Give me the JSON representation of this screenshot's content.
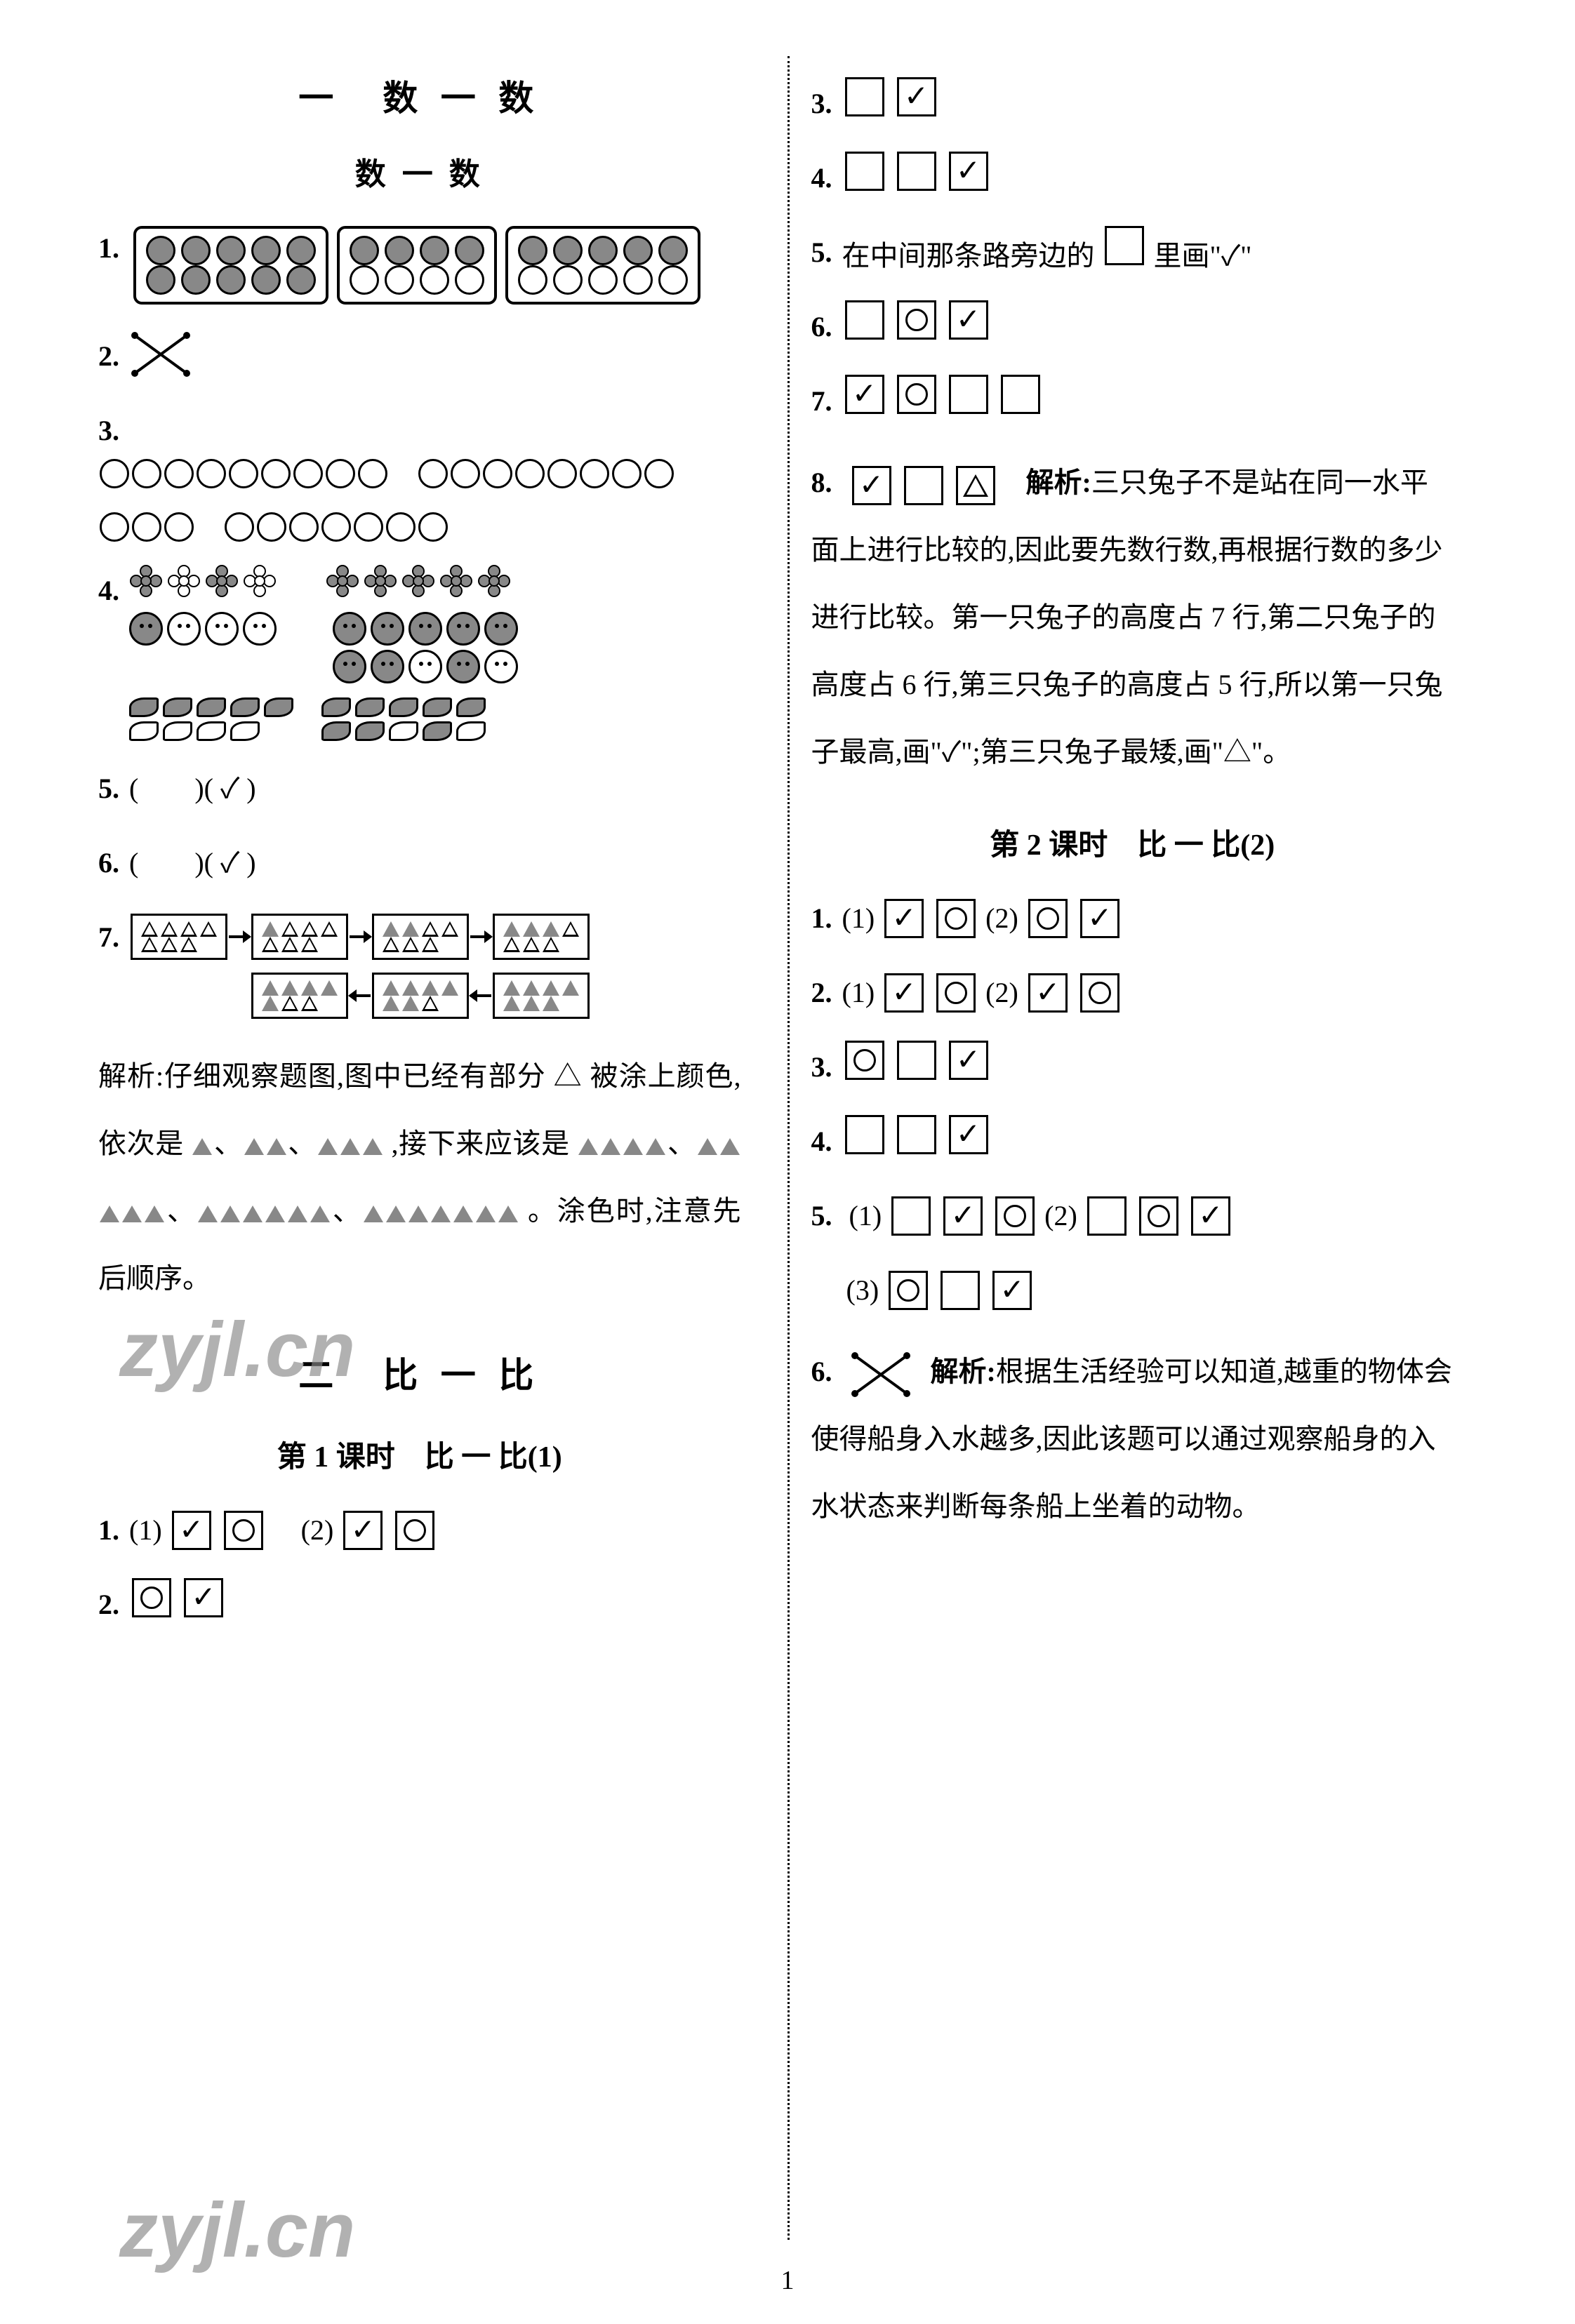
{
  "page_number": "1",
  "watermark": "zyjl.cn",
  "left": {
    "title1": "一　数 一 数",
    "subtitle1": "数 一 数",
    "q1": {
      "trays": [
        {
          "rows": [
            [
              1,
              1,
              1,
              1,
              1
            ],
            [
              1,
              1,
              1,
              1,
              1
            ]
          ]
        },
        {
          "rows": [
            [
              1,
              1,
              1,
              1
            ],
            [
              0,
              0,
              0,
              0
            ]
          ]
        },
        {
          "rows": [
            [
              1,
              1,
              1,
              1,
              1
            ],
            [
              0,
              0,
              0,
              0,
              0
            ]
          ]
        }
      ]
    },
    "q3": {
      "groups": [
        9,
        8,
        3,
        7
      ]
    },
    "q4": {
      "flowers_a": [
        1,
        0,
        1,
        0
      ],
      "flowers_b": [
        1,
        1,
        1,
        1,
        1
      ],
      "smileys_a": [
        1,
        0,
        0,
        0
      ],
      "smileys_b_top": [
        1,
        1,
        1,
        1,
        1
      ],
      "smileys_b_bot": [
        1,
        1,
        0,
        1,
        0
      ],
      "leaves_a_top": [
        1,
        1,
        1,
        1,
        1
      ],
      "leaves_a_bot": [
        0,
        0,
        0,
        0
      ],
      "leaves_b_top": [
        1,
        1,
        1,
        1,
        1
      ],
      "leaves_b_bot": [
        1,
        1,
        0,
        1,
        0
      ]
    },
    "q5": "(　　)( ✓ )",
    "q6": "(　　)( ✓ )",
    "q7": {
      "boxes_top": [
        [
          [
            0,
            0,
            0,
            0
          ],
          [
            0,
            0,
            0
          ]
        ],
        [
          [
            1,
            0,
            0,
            0
          ],
          [
            0,
            0,
            0
          ]
        ],
        [
          [
            1,
            1,
            0,
            0
          ],
          [
            0,
            0,
            0
          ]
        ],
        [
          [
            1,
            1,
            1,
            0
          ],
          [
            0,
            0,
            0
          ]
        ]
      ],
      "boxes_bot": [
        [
          [
            1,
            1,
            1,
            1
          ],
          [
            1,
            1,
            1
          ]
        ],
        [
          [
            1,
            1,
            1,
            1
          ],
          [
            1,
            1,
            0
          ]
        ],
        [
          [
            1,
            1,
            1,
            1
          ],
          [
            1,
            0,
            0
          ]
        ]
      ]
    },
    "analysis7_pre": "解析:仔细观察题图,图中已经有部分 △ 被涂上颜色,依次是",
    "analysis7_seq": "▲、▲▲、▲▲▲",
    "analysis7_mid": ",接下来应该是",
    "analysis7_seq2": "▲▲▲▲、▲▲▲▲▲、▲▲▲▲▲▲、▲▲▲▲▲▲▲",
    "analysis7_end": "。涂色时,注意先后顺序。",
    "title2": "二　比 一 比",
    "lesson1": "第 1 课时　比 一 比(1)",
    "l1q1_part1": "(1)",
    "l1q1_part2": "(2)",
    "l1q1_1": [
      "check",
      "circle"
    ],
    "l1q1_2": [
      "check",
      "circle"
    ],
    "l1q2": [
      "circle",
      "check"
    ]
  },
  "right": {
    "q3": [
      "",
      "check"
    ],
    "q4": [
      "",
      "",
      "check"
    ],
    "q5_text": "在中间那条路旁边的 　 里画\"✓\"",
    "q6": [
      "",
      "circle",
      "check"
    ],
    "q7": [
      "check",
      "circle",
      "",
      ""
    ],
    "q8": [
      "check",
      "",
      "triangle"
    ],
    "q8_label": "解析:",
    "q8_analysis": "三只兔子不是站在同一水平面上进行比较的,因此要先数行数,再根据行数的多少进行比较。第一只兔子的高度占 7 行,第二只兔子的高度占 6 行,第三只兔子的高度占 5 行,所以第一只兔子最高,画\"✓\";第三只兔子最矮,画\"△\"。",
    "lesson2": "第 2 课时　比 一 比(2)",
    "l2q1_1": [
      "check",
      "circle"
    ],
    "l2q1_2": [
      "circle",
      "check"
    ],
    "l2q2_1": [
      "check",
      "circle"
    ],
    "l2q2_2": [
      "check",
      "circle"
    ],
    "l2q3": [
      "circle",
      "",
      "check"
    ],
    "l2q4": [
      "",
      "",
      "check"
    ],
    "l2q5_1": [
      "",
      "check",
      "circle"
    ],
    "l2q5_2": [
      "",
      "circle",
      "check"
    ],
    "l2q5_3": [
      "circle",
      "",
      "check"
    ],
    "l2q6_label": "解析:",
    "l2q6_text": "根据生活经验可以知道,越重的物体会使得船身入水越多,因此该题可以通过观察船身的入水状态来判断每条船上坐着的动物。"
  },
  "labels": {
    "p_open": "(",
    "p_close": ")",
    "part1": "(1)",
    "part2": "(2)",
    "part3": "(3)"
  }
}
